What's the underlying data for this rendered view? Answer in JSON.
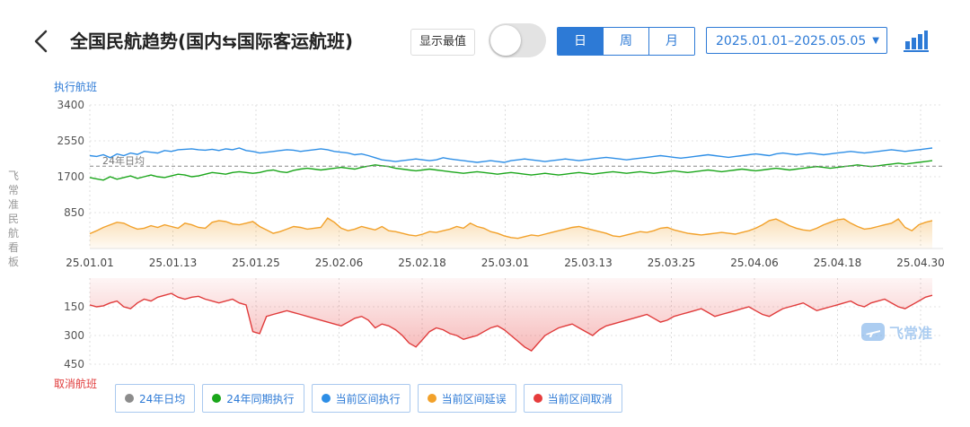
{
  "header": {
    "title": "全国民航趋势(国内⇆国际客运航班)",
    "show_extreme_label": "显示最值",
    "show_extreme_on": false,
    "period_tabs": [
      "日",
      "周",
      "月"
    ],
    "active_period": "日",
    "date_range": "2025.01.01–2025.05.05"
  },
  "side_label": "飞常准民航看板",
  "watermark": "飞常准",
  "colors": {
    "accent": "#2d7ad6",
    "avg24": "#888888",
    "sameperiod24": "#1aa61a",
    "executed": "#2d8ee6",
    "delayed": "#f2a12a",
    "cancelled": "#e03b3b"
  },
  "legend": [
    {
      "label": "24年日均",
      "color": "#8c8c8c"
    },
    {
      "label": "24年同期执行",
      "color": "#1aa61a"
    },
    {
      "label": "当前区间执行",
      "color": "#2d8ee6"
    },
    {
      "label": "当前区间延误",
      "color": "#f2a12a"
    },
    {
      "label": "当前区间取消",
      "color": "#e03b3b"
    }
  ],
  "chart_data": [
    {
      "type": "line",
      "ylabel": "执行航班",
      "ylim": [
        0,
        3400
      ],
      "yticks": [
        3400,
        2550,
        1700,
        850
      ],
      "xticks": [
        "25.01.01",
        "25.01.13",
        "25.01.25",
        "25.02.06",
        "25.02.18",
        "25.03.01",
        "25.03.13",
        "25.03.25",
        "25.04.06",
        "25.04.18",
        "25.04.30"
      ],
      "avg_line": {
        "name": "24年日均",
        "value": 1950,
        "label": "24年日均"
      },
      "x_start": "2025-01-01",
      "x_end": "2025-05-05",
      "series": [
        {
          "name": "当前区间执行",
          "values": [
            2200,
            2180,
            2220,
            2150,
            2240,
            2200,
            2260,
            2230,
            2300,
            2280,
            2260,
            2320,
            2300,
            2340,
            2350,
            2360,
            2340,
            2330,
            2350,
            2320,
            2360,
            2340,
            2380,
            2320,
            2300,
            2260,
            2280,
            2300,
            2320,
            2340,
            2330,
            2300,
            2320,
            2340,
            2360,
            2340,
            2300,
            2280,
            2260,
            2220,
            2240,
            2200,
            2150,
            2100,
            2080,
            2060,
            2080,
            2100,
            2120,
            2100,
            2080,
            2100,
            2150,
            2120,
            2100,
            2080,
            2060,
            2040,
            2060,
            2080,
            2060,
            2040,
            2080,
            2100,
            2120,
            2100,
            2080,
            2060,
            2080,
            2100,
            2120,
            2100,
            2080,
            2100,
            2120,
            2140,
            2160,
            2140,
            2120,
            2100,
            2120,
            2140,
            2160,
            2180,
            2200,
            2180,
            2160,
            2140,
            2160,
            2180,
            2200,
            2220,
            2200,
            2180,
            2160,
            2180,
            2200,
            2220,
            2240,
            2220,
            2200,
            2240,
            2260,
            2240,
            2220,
            2240,
            2260,
            2240,
            2220,
            2240,
            2260,
            2280,
            2300,
            2280,
            2260,
            2280,
            2300,
            2320,
            2340,
            2320,
            2300,
            2320,
            2340,
            2360,
            2380
          ]
        },
        {
          "name": "24年同期执行",
          "values": [
            1680,
            1650,
            1620,
            1700,
            1640,
            1680,
            1720,
            1660,
            1700,
            1740,
            1700,
            1680,
            1720,
            1760,
            1740,
            1700,
            1720,
            1760,
            1800,
            1780,
            1760,
            1800,
            1820,
            1800,
            1780,
            1800,
            1840,
            1860,
            1820,
            1800,
            1850,
            1880,
            1900,
            1880,
            1860,
            1880,
            1900,
            1920,
            1900,
            1880,
            1920,
            1950,
            1980,
            1960,
            1940,
            1900,
            1880,
            1860,
            1840,
            1860,
            1880,
            1860,
            1840,
            1820,
            1800,
            1780,
            1800,
            1820,
            1800,
            1780,
            1760,
            1780,
            1800,
            1780,
            1760,
            1740,
            1760,
            1780,
            1760,
            1740,
            1760,
            1780,
            1800,
            1780,
            1760,
            1780,
            1800,
            1820,
            1800,
            1780,
            1800,
            1820,
            1800,
            1780,
            1800,
            1820,
            1840,
            1820,
            1800,
            1820,
            1840,
            1860,
            1840,
            1820,
            1840,
            1860,
            1880,
            1860,
            1840,
            1860,
            1880,
            1900,
            1880,
            1860,
            1880,
            1900,
            1920,
            1940,
            1920,
            1900,
            1920,
            1940,
            1960,
            1980,
            1960,
            1940,
            1960,
            1980,
            2000,
            2020,
            2000,
            2020,
            2040,
            2060,
            2080
          ]
        },
        {
          "name": "当前区间延误",
          "values": [
            350,
            420,
            500,
            560,
            620,
            600,
            520,
            460,
            480,
            540,
            500,
            560,
            520,
            480,
            600,
            560,
            500,
            480,
            620,
            660,
            640,
            580,
            560,
            600,
            640,
            520,
            440,
            360,
            400,
            460,
            520,
            500,
            460,
            480,
            500,
            720,
            620,
            480,
            420,
            460,
            520,
            480,
            440,
            520,
            420,
            400,
            360,
            320,
            300,
            340,
            400,
            380,
            420,
            460,
            520,
            480,
            600,
            520,
            480,
            400,
            360,
            300,
            260,
            240,
            280,
            320,
            300,
            340,
            380,
            420,
            460,
            500,
            520,
            480,
            440,
            400,
            360,
            300,
            280,
            320,
            360,
            400,
            380,
            420,
            480,
            500,
            440,
            400,
            360,
            340,
            320,
            340,
            360,
            380,
            360,
            340,
            380,
            420,
            480,
            560,
            660,
            700,
            620,
            540,
            480,
            440,
            420,
            480,
            560,
            620,
            680,
            700,
            600,
            520,
            460,
            480,
            520,
            560,
            600,
            700,
            500,
            420,
            560,
            620,
            660
          ]
        },
        {
          "name": "当前区间取消",
          "values": [
            140,
            150,
            145,
            130,
            120,
            150,
            160,
            130,
            110,
            120,
            100,
            90,
            80,
            100,
            110,
            100,
            95,
            110,
            120,
            130,
            120,
            110,
            130,
            140,
            280,
            290,
            200,
            190,
            180,
            170,
            180,
            190,
            200,
            210,
            220,
            230,
            240,
            250,
            230,
            210,
            200,
            220,
            260,
            240,
            250,
            270,
            300,
            340,
            360,
            320,
            280,
            260,
            270,
            290,
            300,
            320,
            310,
            300,
            280,
            260,
            250,
            270,
            300,
            330,
            360,
            380,
            340,
            300,
            280,
            260,
            250,
            240,
            260,
            280,
            300,
            270,
            250,
            240,
            230,
            220,
            210,
            200,
            190,
            210,
            230,
            220,
            200,
            190,
            180,
            170,
            160,
            180,
            200,
            190,
            180,
            170,
            160,
            150,
            170,
            190,
            200,
            180,
            160,
            150,
            140,
            130,
            150,
            170,
            160,
            150,
            140,
            130,
            120,
            140,
            150,
            130,
            120,
            110,
            130,
            150,
            160,
            140,
            120,
            100,
            90
          ]
        }
      ]
    },
    {
      "type": "area",
      "ylabel": "取消航班",
      "ylim": [
        0,
        450
      ],
      "yticks": [
        150,
        300,
        450
      ],
      "y_inverted": true,
      "series_ref": "当前区间取消"
    }
  ]
}
